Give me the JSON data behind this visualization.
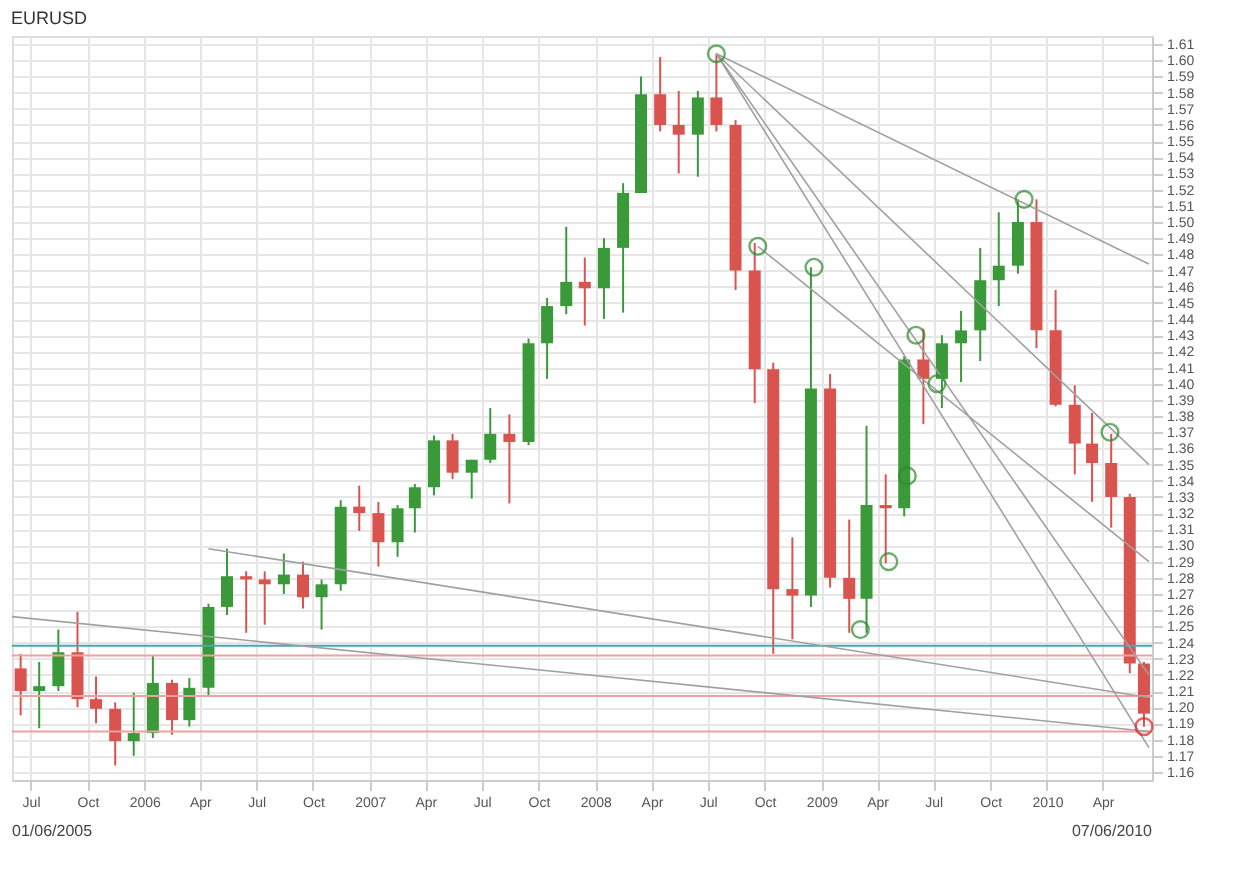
{
  "chart_data": {
    "type": "candlestick",
    "title": "EURUSD",
    "x": [
      "2005-06-15",
      "2005-07-15",
      "2005-08-15",
      "2005-09-15",
      "2005-10-15",
      "2005-11-15",
      "2005-12-15",
      "2006-01-15",
      "2006-02-15",
      "2006-03-15",
      "2006-04-15",
      "2006-05-15",
      "2006-06-15",
      "2006-07-15",
      "2006-08-15",
      "2006-09-15",
      "2006-10-15",
      "2006-11-15",
      "2006-12-15",
      "2007-01-15",
      "2007-02-15",
      "2007-03-15",
      "2007-04-15",
      "2007-05-15",
      "2007-06-15",
      "2007-07-15",
      "2007-08-15",
      "2007-09-15",
      "2007-10-15",
      "2007-11-15",
      "2007-12-15",
      "2008-01-15",
      "2008-02-15",
      "2008-03-15",
      "2008-04-15",
      "2008-05-15",
      "2008-06-15",
      "2008-07-15",
      "2008-08-15",
      "2008-09-15",
      "2008-10-15",
      "2008-11-15",
      "2008-12-15",
      "2009-01-15",
      "2009-02-15",
      "2009-03-15",
      "2009-04-15",
      "2009-05-15",
      "2009-06-15",
      "2009-07-15",
      "2009-08-15",
      "2009-09-15",
      "2009-10-15",
      "2009-11-15",
      "2009-12-15",
      "2010-01-15",
      "2010-02-15",
      "2010-03-15",
      "2010-04-15",
      "2010-05-15",
      "2010-06-07"
    ],
    "ohlc": [
      [
        1.224,
        1.233,
        1.195,
        1.21
      ],
      [
        1.21,
        1.228,
        1.187,
        1.213
      ],
      [
        1.213,
        1.248,
        1.21,
        1.234
      ],
      [
        1.234,
        1.259,
        1.2,
        1.205
      ],
      [
        1.205,
        1.219,
        1.19,
        1.199
      ],
      [
        1.199,
        1.203,
        1.164,
        1.179
      ],
      [
        1.179,
        1.209,
        1.17,
        1.184
      ],
      [
        1.184,
        1.232,
        1.181,
        1.215
      ],
      [
        1.215,
        1.217,
        1.183,
        1.192
      ],
      [
        1.192,
        1.218,
        1.188,
        1.212
      ],
      [
        1.212,
        1.264,
        1.207,
        1.262
      ],
      [
        1.262,
        1.298,
        1.257,
        1.281
      ],
      [
        1.281,
        1.284,
        1.246,
        1.279
      ],
      [
        1.279,
        1.284,
        1.251,
        1.276
      ],
      [
        1.276,
        1.295,
        1.27,
        1.282
      ],
      [
        1.282,
        1.29,
        1.261,
        1.268
      ],
      [
        1.268,
        1.279,
        1.248,
        1.276
      ],
      [
        1.276,
        1.328,
        1.272,
        1.324
      ],
      [
        1.324,
        1.337,
        1.309,
        1.32
      ],
      [
        1.32,
        1.327,
        1.287,
        1.302
      ],
      [
        1.302,
        1.325,
        1.293,
        1.323
      ],
      [
        1.323,
        1.338,
        1.308,
        1.336
      ],
      [
        1.336,
        1.368,
        1.331,
        1.365
      ],
      [
        1.365,
        1.369,
        1.341,
        1.345
      ],
      [
        1.345,
        1.353,
        1.329,
        1.353
      ],
      [
        1.353,
        1.385,
        1.351,
        1.369
      ],
      [
        1.369,
        1.381,
        1.326,
        1.364
      ],
      [
        1.364,
        1.428,
        1.362,
        1.425
      ],
      [
        1.425,
        1.453,
        1.403,
        1.448
      ],
      [
        1.448,
        1.497,
        1.443,
        1.463
      ],
      [
        1.463,
        1.478,
        1.436,
        1.459
      ],
      [
        1.459,
        1.49,
        1.44,
        1.484
      ],
      [
        1.484,
        1.524,
        1.444,
        1.518
      ],
      [
        1.518,
        1.59,
        1.518,
        1.579
      ],
      [
        1.579,
        1.602,
        1.556,
        1.56
      ],
      [
        1.56,
        1.581,
        1.53,
        1.554
      ],
      [
        1.554,
        1.581,
        1.528,
        1.577
      ],
      [
        1.577,
        1.604,
        1.556,
        1.56
      ],
      [
        1.56,
        1.563,
        1.458,
        1.47
      ],
      [
        1.47,
        1.487,
        1.388,
        1.409
      ],
      [
        1.409,
        1.413,
        1.233,
        1.273
      ],
      [
        1.273,
        1.305,
        1.242,
        1.269
      ],
      [
        1.269,
        1.472,
        1.262,
        1.397
      ],
      [
        1.397,
        1.406,
        1.274,
        1.28
      ],
      [
        1.28,
        1.316,
        1.246,
        1.267
      ],
      [
        1.267,
        1.374,
        1.246,
        1.325
      ],
      [
        1.325,
        1.344,
        1.289,
        1.323
      ],
      [
        1.323,
        1.417,
        1.318,
        1.415
      ],
      [
        1.415,
        1.434,
        1.375,
        1.403
      ],
      [
        1.403,
        1.43,
        1.385,
        1.425
      ],
      [
        1.425,
        1.445,
        1.401,
        1.433
      ],
      [
        1.433,
        1.484,
        1.414,
        1.464
      ],
      [
        1.464,
        1.506,
        1.448,
        1.473
      ],
      [
        1.473,
        1.514,
        1.468,
        1.5
      ],
      [
        1.5,
        1.514,
        1.422,
        1.433
      ],
      [
        1.433,
        1.458,
        1.386,
        1.387
      ],
      [
        1.387,
        1.399,
        1.344,
        1.363
      ],
      [
        1.363,
        1.382,
        1.327,
        1.351
      ],
      [
        1.351,
        1.369,
        1.311,
        1.33
      ],
      [
        1.33,
        1.332,
        1.221,
        1.227
      ],
      [
        1.227,
        1.228,
        1.188,
        1.196
      ]
    ],
    "series": [
      {
        "type": "line",
        "color": "#a0a0a0",
        "x": [
          "2008-07-15",
          "2010-06-15"
        ],
        "values": [
          1.604,
          1.474
        ]
      },
      {
        "type": "line",
        "color": "#a0a0a0",
        "x": [
          "2008-07-15",
          "2010-06-15"
        ],
        "values": [
          1.604,
          1.35
        ]
      },
      {
        "type": "line",
        "color": "#a0a0a0",
        "x": [
          "2008-07-15",
          "2010-06-15"
        ],
        "values": [
          1.604,
          1.22
        ]
      },
      {
        "type": "line",
        "color": "#a0a0a0",
        "x": [
          "2008-07-15",
          "2010-06-15"
        ],
        "values": [
          1.604,
          1.175
        ]
      },
      {
        "type": "line",
        "color": "#a0a0a0",
        "x": [
          "2005-06-01",
          "2010-06-15"
        ],
        "values": [
          1.256,
          1.185
        ]
      },
      {
        "type": "line",
        "color": "#a0a0a0",
        "x": [
          "2006-04-15",
          "2010-06-15"
        ],
        "values": [
          1.298,
          1.206
        ]
      },
      {
        "type": "line",
        "color": "#a0a0a0",
        "x": [
          "2008-09-20",
          "2010-06-15"
        ],
        "values": [
          1.485,
          1.29
        ]
      },
      {
        "type": "scatter",
        "marker": "circle",
        "color": "#2e8b2e",
        "x": [
          "2008-07-15",
          "2008-09-20",
          "2008-12-20",
          "2009-03-05",
          "2009-04-20",
          "2009-05-20",
          "2009-06-03",
          "2009-07-07",
          "2009-11-25",
          "2010-04-13"
        ],
        "values": [
          1.604,
          1.485,
          1.472,
          1.248,
          1.29,
          1.343,
          1.43,
          1.4,
          1.514,
          1.37
        ]
      },
      {
        "type": "scatter",
        "marker": "circle",
        "color": "#e02020",
        "x": [
          "2010-06-07"
        ],
        "values": [
          1.188
        ]
      }
    ],
    "ref_lines": [
      {
        "axis": "y",
        "value": 1.238,
        "color": "#4aa6b5"
      },
      {
        "axis": "y",
        "value": 1.232,
        "color": "#f0a0a0"
      },
      {
        "axis": "y",
        "value": 1.207,
        "color": "#f0a0a0"
      },
      {
        "axis": "y",
        "value": 1.185,
        "color": "#f0a0a0"
      }
    ],
    "xlim": [
      "2005-06-01",
      "2010-06-20"
    ],
    "xticks": [
      {
        "value": "2005-07-01",
        "label": "Jul"
      },
      {
        "value": "2005-10-01",
        "label": "Oct"
      },
      {
        "value": "2006-01-01",
        "label": "2006"
      },
      {
        "value": "2006-04-01",
        "label": "Apr"
      },
      {
        "value": "2006-07-01",
        "label": "Jul"
      },
      {
        "value": "2006-10-01",
        "label": "Oct"
      },
      {
        "value": "2007-01-01",
        "label": "2007"
      },
      {
        "value": "2007-04-01",
        "label": "Apr"
      },
      {
        "value": "2007-07-01",
        "label": "Jul"
      },
      {
        "value": "2007-10-01",
        "label": "Oct"
      },
      {
        "value": "2008-01-01",
        "label": "2008"
      },
      {
        "value": "2008-04-01",
        "label": "Apr"
      },
      {
        "value": "2008-07-01",
        "label": "Jul"
      },
      {
        "value": "2008-10-01",
        "label": "Oct"
      },
      {
        "value": "2009-01-01",
        "label": "2009"
      },
      {
        "value": "2009-04-01",
        "label": "Apr"
      },
      {
        "value": "2009-07-01",
        "label": "Jul"
      },
      {
        "value": "2009-10-01",
        "label": "Oct"
      },
      {
        "value": "2010-01-01",
        "label": "2010"
      },
      {
        "value": "2010-04-01",
        "label": "Apr"
      }
    ],
    "ylim": [
      1.155,
      1.615
    ],
    "yticks": [
      1.16,
      1.17,
      1.18,
      1.19,
      {
        "value": 1.2,
        "label": "1.20"
      },
      1.21,
      1.22,
      1.23,
      1.24,
      1.25,
      1.26,
      1.27,
      1.28,
      1.29,
      {
        "value": 1.3,
        "label": "1.30"
      },
      1.31,
      1.32,
      1.33,
      1.34,
      1.35,
      1.36,
      1.37,
      1.38,
      1.39,
      {
        "value": 1.4,
        "label": "1.40"
      },
      1.41,
      1.42,
      1.43,
      1.44,
      1.45,
      1.46,
      1.47,
      1.48,
      1.49,
      {
        "value": 1.5,
        "label": "1.50"
      },
      1.51,
      1.52,
      1.53,
      1.54,
      1.55,
      1.56,
      1.57,
      1.58,
      1.59,
      {
        "value": 1.6,
        "label": "1.60"
      },
      1.61
    ],
    "annotations": [
      "01/06/2005",
      "07/06/2010"
    ],
    "grid": true
  }
}
